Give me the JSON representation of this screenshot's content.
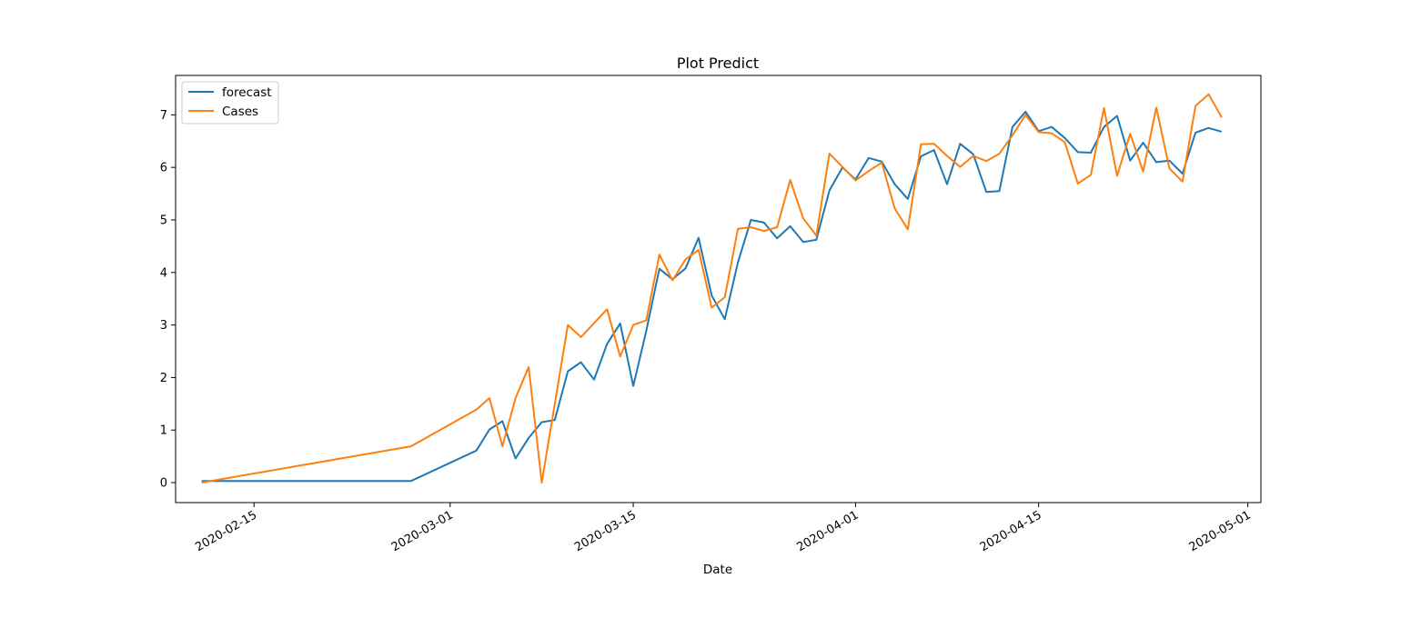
{
  "chart_data": {
    "type": "line",
    "title": "Plot Predict",
    "xlabel": "Date",
    "ylabel": "",
    "xlim": [
      "2020-02-09",
      "2020-05-02"
    ],
    "ylim": [
      -0.38,
      7.75
    ],
    "x_ticks": [
      "2020-02-15",
      "2020-03-01",
      "2020-03-15",
      "2020-04-01",
      "2020-04-15",
      "2020-05-01"
    ],
    "y_ticks": [
      0,
      1,
      2,
      3,
      4,
      5,
      6,
      7
    ],
    "legend_position": "upper-left",
    "grid": false,
    "series": [
      {
        "name": "forecast",
        "color": "#1f77b4",
        "points": [
          [
            "2020-02-11",
            0.03
          ],
          [
            "2020-02-27",
            0.03
          ],
          [
            "2020-03-03",
            0.61
          ],
          [
            "2020-03-04",
            1.01
          ],
          [
            "2020-03-05",
            1.17
          ],
          [
            "2020-03-06",
            0.46
          ],
          [
            "2020-03-07",
            0.85
          ],
          [
            "2020-03-08",
            1.15
          ],
          [
            "2020-03-09",
            1.19
          ],
          [
            "2020-03-10",
            2.12
          ],
          [
            "2020-03-11",
            2.29
          ],
          [
            "2020-03-12",
            1.96
          ],
          [
            "2020-03-13",
            2.64
          ],
          [
            "2020-03-14",
            3.03
          ],
          [
            "2020-03-15",
            1.84
          ],
          [
            "2020-03-16",
            2.89
          ],
          [
            "2020-03-17",
            4.07
          ],
          [
            "2020-03-18",
            3.87
          ],
          [
            "2020-03-19",
            4.08
          ],
          [
            "2020-03-20",
            4.66
          ],
          [
            "2020-03-21",
            3.56
          ],
          [
            "2020-03-22",
            3.11
          ],
          [
            "2020-03-23",
            4.19
          ],
          [
            "2020-03-24",
            5.0
          ],
          [
            "2020-03-25",
            4.95
          ],
          [
            "2020-03-26",
            4.65
          ],
          [
            "2020-03-27",
            4.88
          ],
          [
            "2020-03-28",
            4.58
          ],
          [
            "2020-03-29",
            4.62
          ],
          [
            "2020-03-30",
            5.56
          ],
          [
            "2020-03-31",
            6.0
          ],
          [
            "2020-04-01",
            5.77
          ],
          [
            "2020-04-02",
            6.18
          ],
          [
            "2020-04-03",
            6.11
          ],
          [
            "2020-04-04",
            5.68
          ],
          [
            "2020-04-05",
            5.4
          ],
          [
            "2020-04-06",
            6.21
          ],
          [
            "2020-04-07",
            6.33
          ],
          [
            "2020-04-08",
            5.68
          ],
          [
            "2020-04-09",
            6.45
          ],
          [
            "2020-04-10",
            6.25
          ],
          [
            "2020-04-11",
            5.53
          ],
          [
            "2020-04-12",
            5.55
          ],
          [
            "2020-04-13",
            6.77
          ],
          [
            "2020-04-14",
            7.06
          ],
          [
            "2020-04-15",
            6.69
          ],
          [
            "2020-04-16",
            6.77
          ],
          [
            "2020-04-17",
            6.56
          ],
          [
            "2020-04-18",
            6.29
          ],
          [
            "2020-04-19",
            6.28
          ],
          [
            "2020-04-20",
            6.77
          ],
          [
            "2020-04-21",
            6.98
          ],
          [
            "2020-04-22",
            6.13
          ],
          [
            "2020-04-23",
            6.47
          ],
          [
            "2020-04-24",
            6.1
          ],
          [
            "2020-04-25",
            6.13
          ],
          [
            "2020-04-26",
            5.88
          ],
          [
            "2020-04-27",
            6.66
          ],
          [
            "2020-04-28",
            6.75
          ],
          [
            "2020-04-29",
            6.68
          ]
        ]
      },
      {
        "name": "Cases",
        "color": "#ff7f0e",
        "points": [
          [
            "2020-02-11",
            0.0
          ],
          [
            "2020-02-27",
            0.69
          ],
          [
            "2020-03-03",
            1.39
          ],
          [
            "2020-03-04",
            1.61
          ],
          [
            "2020-03-05",
            0.69
          ],
          [
            "2020-03-06",
            1.61
          ],
          [
            "2020-03-07",
            2.2
          ],
          [
            "2020-03-08",
            0.0
          ],
          [
            "2020-03-10",
            3.0
          ],
          [
            "2020-03-11",
            2.77
          ],
          [
            "2020-03-13",
            3.3
          ],
          [
            "2020-03-14",
            2.4
          ],
          [
            "2020-03-15",
            3.0
          ],
          [
            "2020-03-16",
            3.09
          ],
          [
            "2020-03-17",
            4.34
          ],
          [
            "2020-03-18",
            3.85
          ],
          [
            "2020-03-19",
            4.25
          ],
          [
            "2020-03-20",
            4.43
          ],
          [
            "2020-03-21",
            3.33
          ],
          [
            "2020-03-22",
            3.53
          ],
          [
            "2020-03-23",
            4.83
          ],
          [
            "2020-03-24",
            4.86
          ],
          [
            "2020-03-25",
            4.79
          ],
          [
            "2020-03-26",
            4.86
          ],
          [
            "2020-03-27",
            5.76
          ],
          [
            "2020-03-28",
            5.03
          ],
          [
            "2020-03-29",
            4.7
          ],
          [
            "2020-03-30",
            6.26
          ],
          [
            "2020-03-31",
            6.01
          ],
          [
            "2020-04-01",
            5.75
          ],
          [
            "2020-04-02",
            5.93
          ],
          [
            "2020-04-03",
            6.09
          ],
          [
            "2020-04-04",
            5.22
          ],
          [
            "2020-04-05",
            4.82
          ],
          [
            "2020-04-06",
            6.44
          ],
          [
            "2020-04-07",
            6.45
          ],
          [
            "2020-04-08",
            6.22
          ],
          [
            "2020-04-09",
            6.01
          ],
          [
            "2020-04-10",
            6.22
          ],
          [
            "2020-04-11",
            6.12
          ],
          [
            "2020-04-12",
            6.26
          ],
          [
            "2020-04-13",
            6.61
          ],
          [
            "2020-04-14",
            7.0
          ],
          [
            "2020-04-15",
            6.67
          ],
          [
            "2020-04-16",
            6.65
          ],
          [
            "2020-04-17",
            6.48
          ],
          [
            "2020-04-18",
            5.69
          ],
          [
            "2020-04-19",
            5.86
          ],
          [
            "2020-04-20",
            7.13
          ],
          [
            "2020-04-21",
            5.84
          ],
          [
            "2020-04-22",
            6.64
          ],
          [
            "2020-04-23",
            5.92
          ],
          [
            "2020-04-24",
            7.14
          ],
          [
            "2020-04-25",
            5.98
          ],
          [
            "2020-04-26",
            5.73
          ],
          [
            "2020-04-27",
            7.17
          ],
          [
            "2020-04-28",
            7.39
          ],
          [
            "2020-04-29",
            6.95
          ]
        ]
      }
    ]
  }
}
